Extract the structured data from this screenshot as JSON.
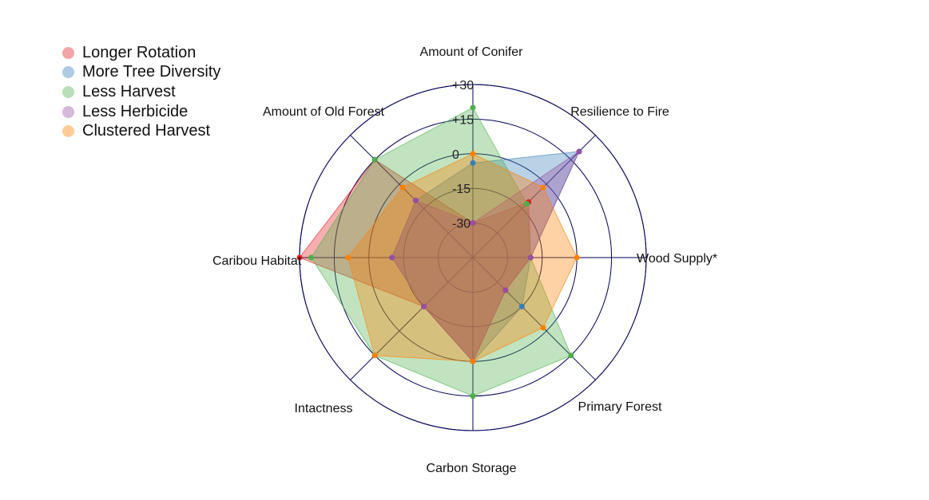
{
  "chart_data": {
    "type": "radar",
    "title": "",
    "axes": [
      "Amount of Conifer",
      "Resilience to Fire",
      "Wood Supply*",
      "Primary Forest",
      "Carbon Storage",
      "Intactness",
      "Caribou Habitat",
      "Amount of Old Forest"
    ],
    "ticks": [
      -30,
      -15,
      0,
      15,
      30
    ],
    "tick_labels": [
      "-30",
      "-15",
      "0",
      "+15",
      "+30"
    ],
    "range": [
      -45,
      30
    ],
    "series": [
      {
        "name": "Longer Rotation",
        "color": "#e41a1c",
        "values": [
          -30,
          -11,
          -20,
          -25,
          0,
          -15,
          30,
          15
        ]
      },
      {
        "name": "More Tree Diversity",
        "color": "#377eb8",
        "values": [
          -4,
          20,
          -20,
          -15,
          0,
          -15,
          -10,
          -10
        ]
      },
      {
        "name": "Less Harvest",
        "color": "#4daf4a",
        "values": [
          20,
          -12,
          -20,
          15,
          15,
          15,
          25,
          15
        ]
      },
      {
        "name": "Less Herbicide",
        "color": "#984ea3",
        "values": [
          -30,
          20,
          -20,
          -25,
          0,
          -15,
          -10,
          -10
        ]
      },
      {
        "name": "Clustered Harvest",
        "color": "#ff7f00",
        "values": [
          0,
          -2,
          0,
          -2,
          0,
          15,
          9,
          -2
        ]
      }
    ]
  }
}
